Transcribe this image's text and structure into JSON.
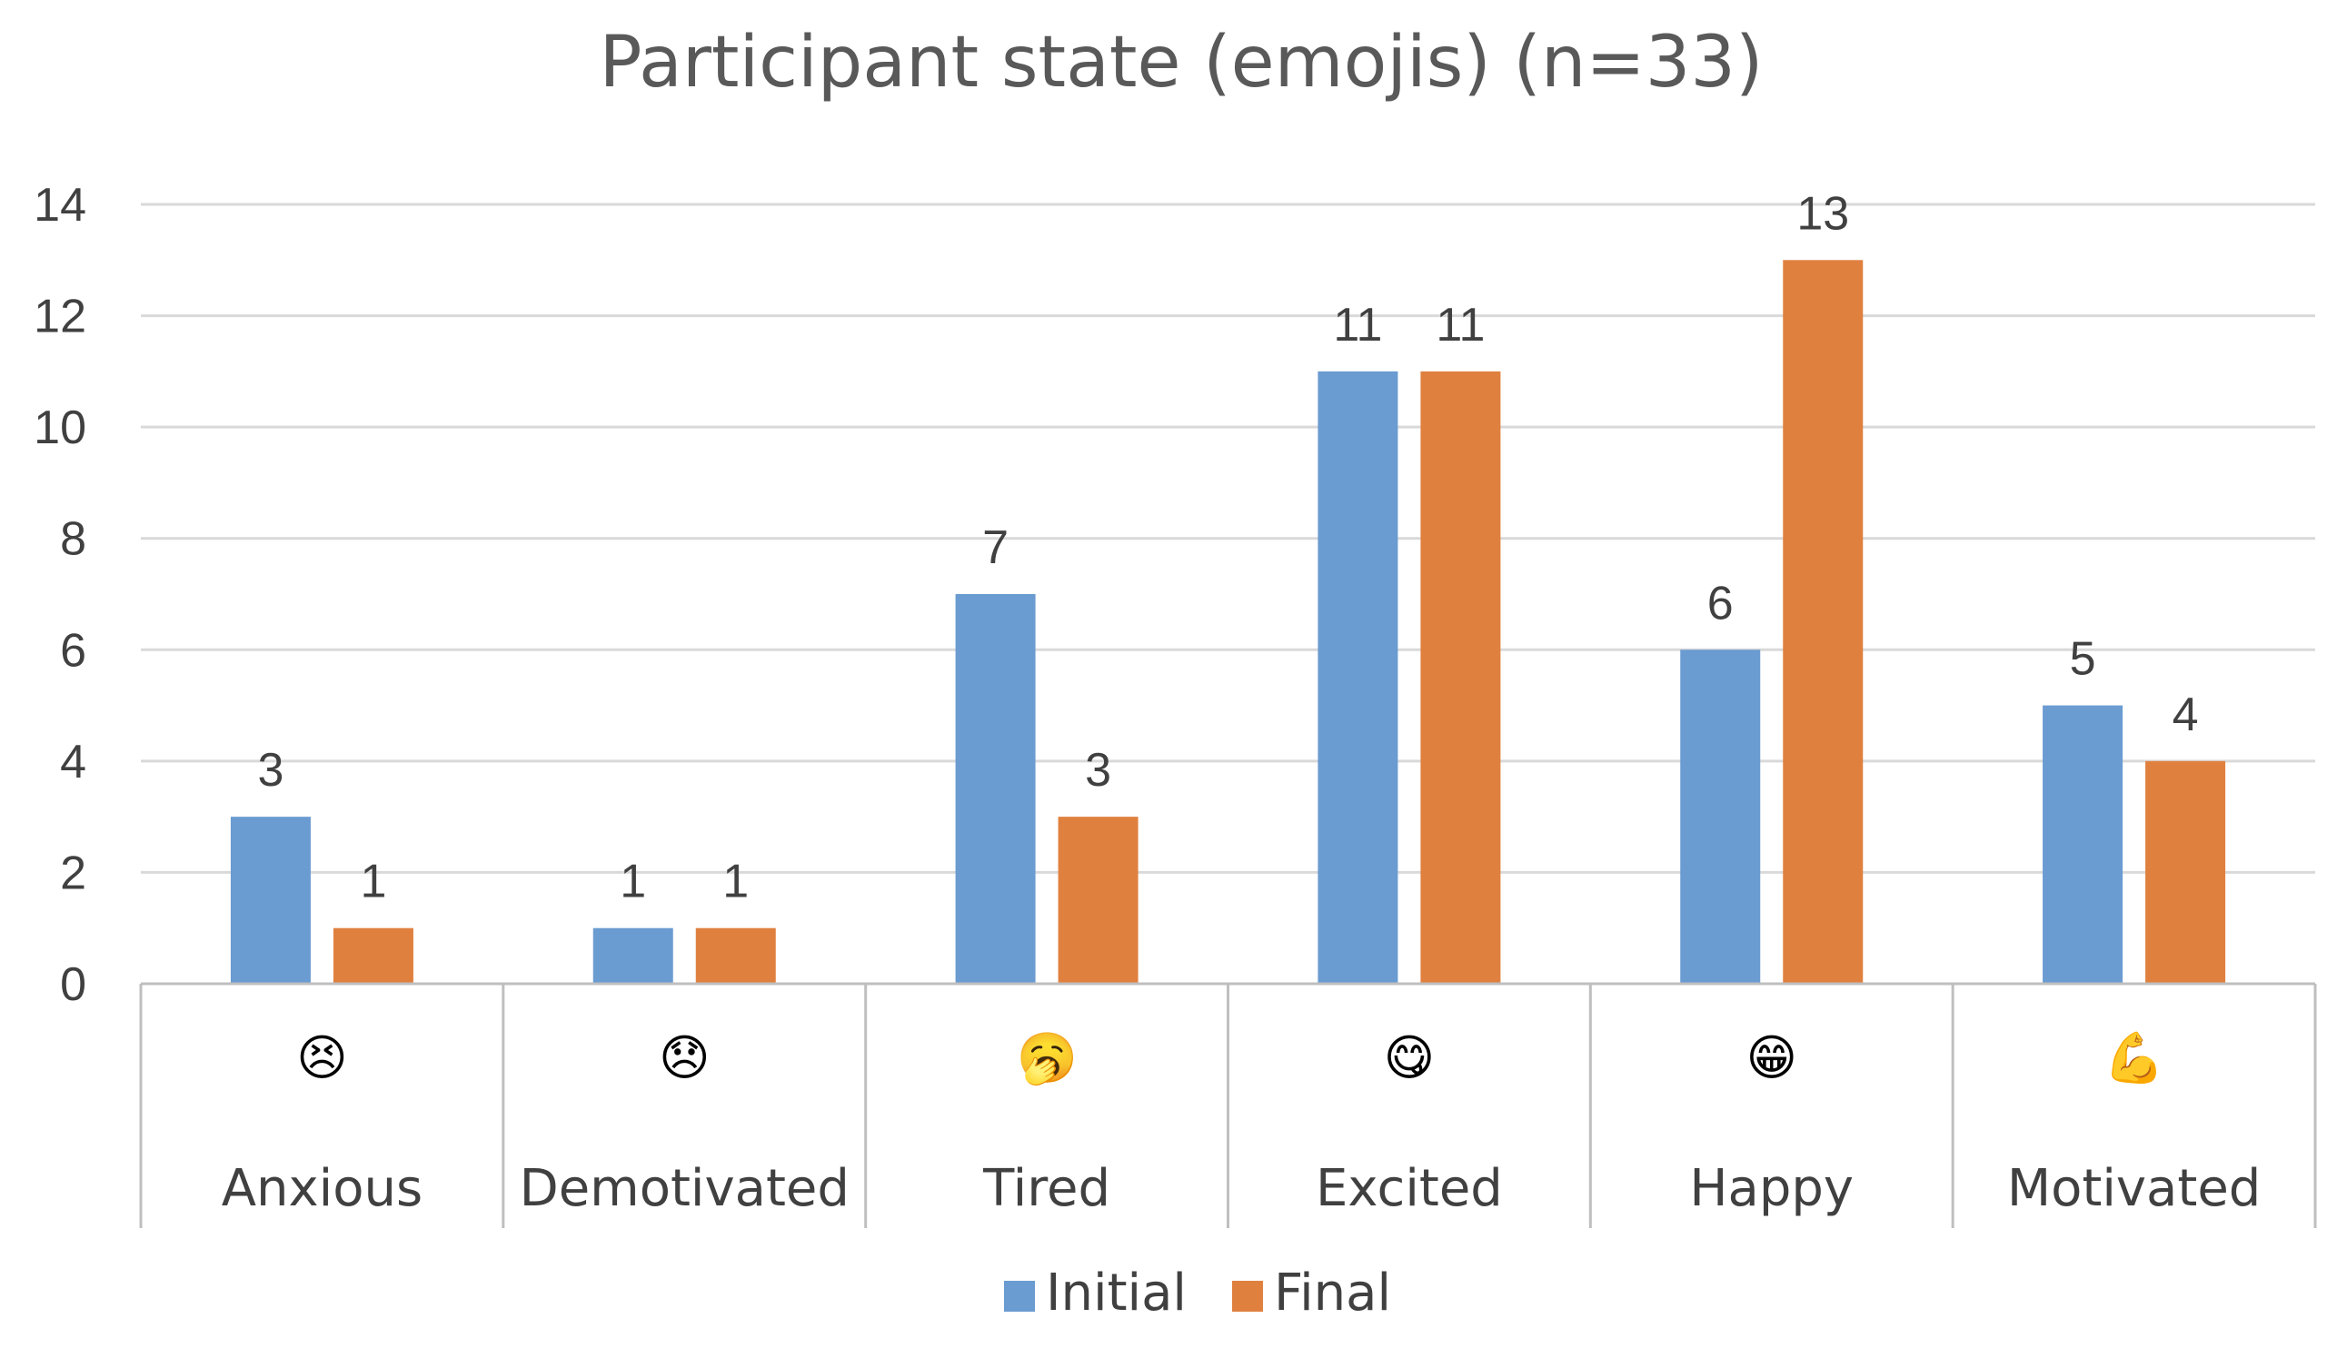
{
  "chart_data": {
    "type": "bar",
    "title": "Participant state (emojis) (n=33)",
    "categories": [
      "Anxious",
      "Demotivated",
      "Tired",
      "Excited",
      "Happy",
      "Motivated"
    ],
    "category_emojis": [
      "😣",
      "😞",
      "🥱",
      "😋",
      "😁",
      "💪"
    ],
    "category_emoji_names": [
      "persevering-face-icon",
      "disappointed-face-icon",
      "yawning-face-icon",
      "savoring-food-face-icon",
      "grinning-face-icon",
      "flexed-biceps-icon"
    ],
    "series": [
      {
        "name": "Initial",
        "color": "#6a9bd1",
        "values": [
          3,
          1,
          7,
          11,
          6,
          5
        ]
      },
      {
        "name": "Final",
        "color": "#e0803f",
        "values": [
          1,
          1,
          3,
          11,
          13,
          4
        ]
      }
    ],
    "ylim": [
      0,
      14
    ],
    "yticks": [
      "0",
      "2",
      "4",
      "6",
      "8",
      "10",
      "12",
      "14"
    ],
    "xlabel": "",
    "ylabel": "",
    "grid": true,
    "legend_position": "bottom",
    "data_labels": true
  }
}
